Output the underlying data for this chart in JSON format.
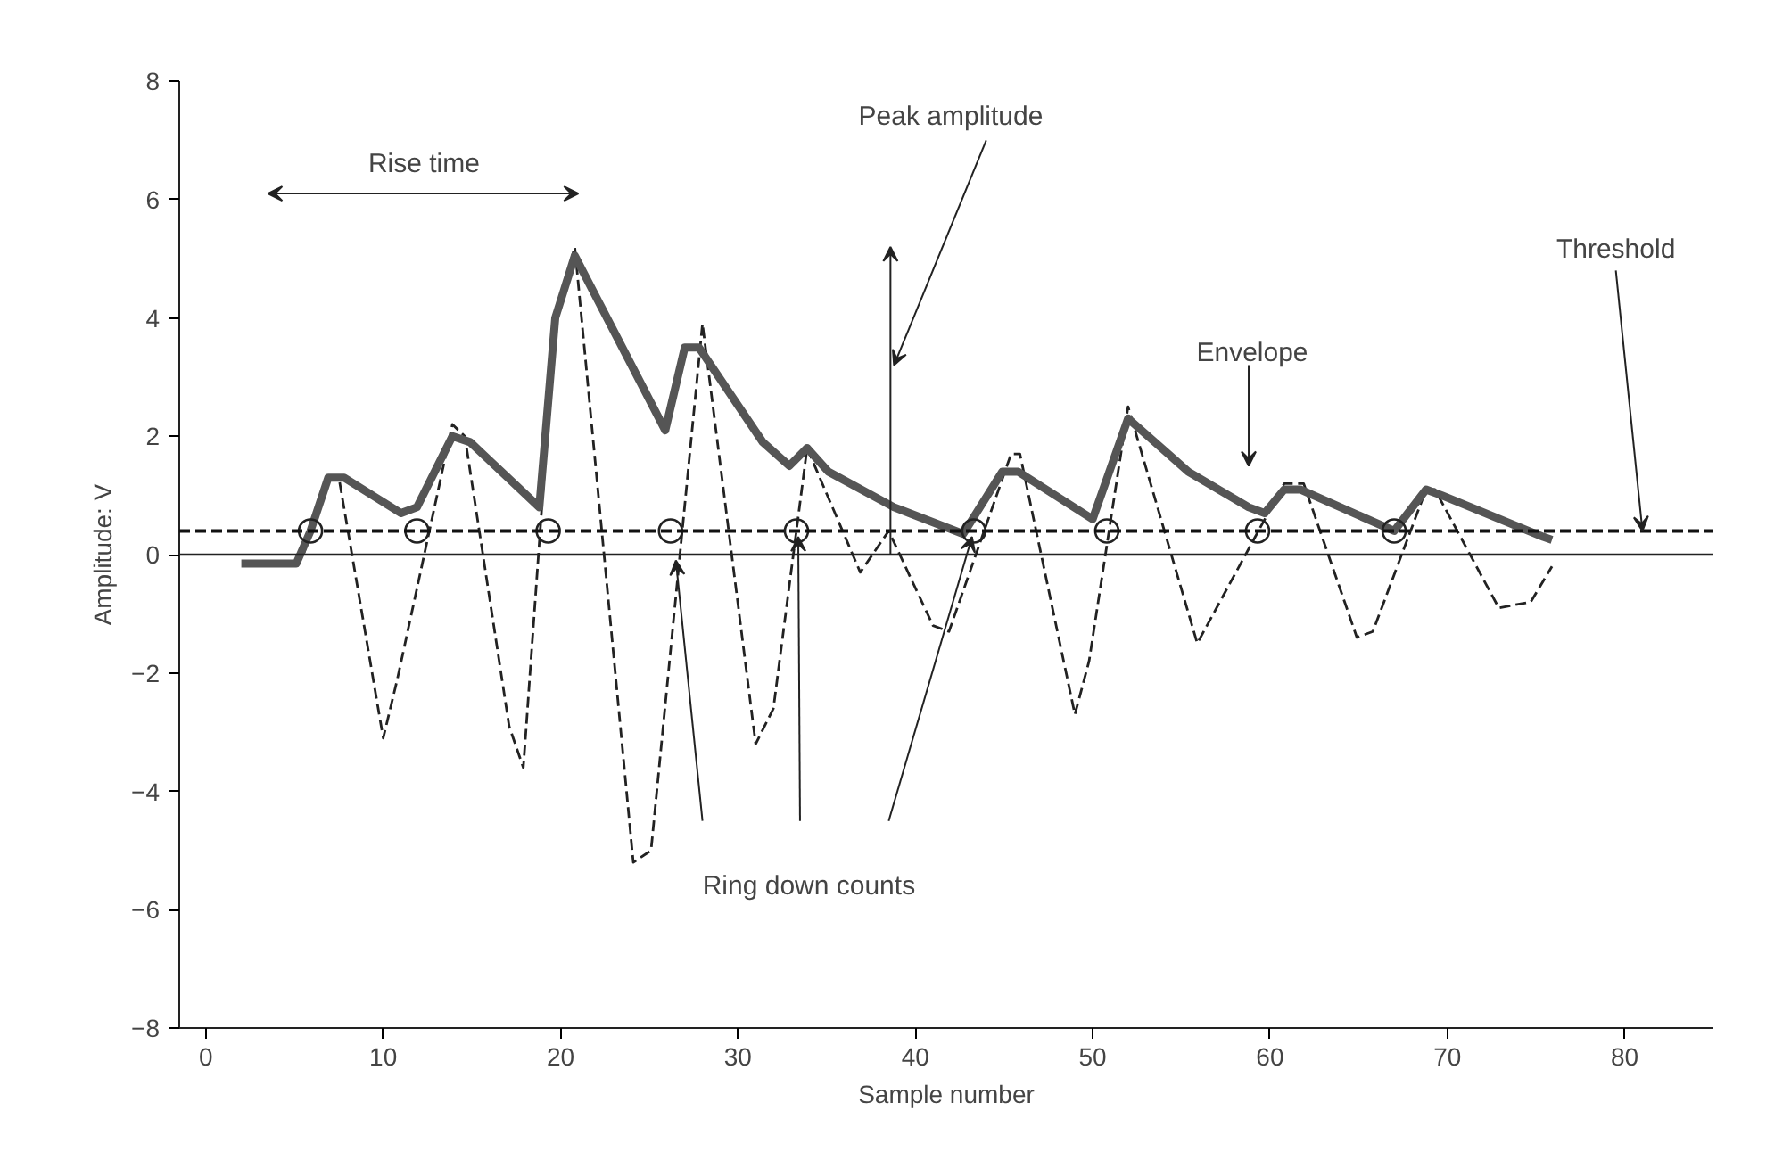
{
  "chart_data": {
    "type": "line",
    "xlabel": "Sample number",
    "ylabel": "Amplitude: V",
    "xlim": [
      -1.5,
      85
    ],
    "ylim": [
      -8,
      8
    ],
    "xticks": [
      0,
      10,
      20,
      30,
      40,
      50,
      60,
      70,
      80
    ],
    "yticks": [
      -8,
      -6,
      -4,
      -2,
      0,
      2,
      4,
      6,
      8
    ],
    "grid": false,
    "series": [
      {
        "line_style": "dashed",
        "color": "#222222",
        "x": [
          5.5,
          6.9,
          7.5,
          10,
          10.8,
          13.9,
          14.6,
          17.1,
          17.9,
          19.7,
          20.8,
          24.1,
          25.1,
          28,
          31,
          32,
          33.9,
          36.9,
          38.5,
          41,
          41.9,
          45.4,
          45.9,
          49,
          49.8,
          52,
          55.9,
          60.8,
          61.9,
          64.9,
          65.8,
          68.8,
          69.3,
          72.9,
          74.7,
          75.9
        ],
        "values": [
          0,
          1.3,
          1.3,
          -3.1,
          -2.1,
          2.2,
          2.0,
          -2.9,
          -3.6,
          4.0,
          5.2,
          -5.2,
          -5.0,
          3.9,
          -3.2,
          -2.6,
          1.8,
          -0.3,
          0.4,
          -1.2,
          -1.3,
          1.7,
          1.7,
          -2.7,
          -1.8,
          2.5,
          -1.5,
          1.2,
          1.2,
          -1.4,
          -1.3,
          1.1,
          1.1,
          -0.9,
          -0.8,
          -0.2
        ]
      },
      {
        "line_style": "solid",
        "color": "#555555",
        "x": [
          2.0,
          5.1,
          5.9,
          6.9,
          7.8,
          11.0,
          11.9,
          13.9,
          14.9,
          18.8,
          19.7,
          20.8,
          25.9,
          27.0,
          27.8,
          31.4,
          32.9,
          33.9,
          35.1,
          38.8,
          42.7,
          44.9,
          45.8,
          50.0,
          52.0,
          55.4,
          58.8,
          59.7,
          60.8,
          61.7,
          67.0,
          68.8,
          69.7,
          75.4,
          75.9
        ],
        "values": [
          -0.15,
          -0.15,
          0.4,
          1.3,
          1.3,
          0.7,
          0.8,
          2.0,
          1.9,
          0.8,
          4.0,
          5.05,
          2.1,
          3.5,
          3.5,
          1.9,
          1.5,
          1.8,
          1.4,
          0.8,
          0.35,
          1.4,
          1.4,
          0.6,
          2.3,
          1.4,
          0.8,
          0.7,
          1.1,
          1.1,
          0.4,
          1.1,
          1.0,
          0.3,
          0.25
        ]
      },
      {
        "type": "scatter",
        "marker": "circle",
        "color": "#222222",
        "x": [
          5.9,
          11.9,
          19.3,
          26.2,
          33.3,
          43.3,
          50.8,
          59.3,
          67.0
        ],
        "values": [
          0.4,
          0.4,
          0.4,
          0.4,
          0.4,
          0.4,
          0.4,
          0.4,
          0.4
        ]
      }
    ],
    "ref_lines": [
      {
        "axis": "y",
        "value": 0,
        "line_style": "solid",
        "color": "#222222"
      },
      {
        "axis": "y",
        "value": 0.4,
        "line_style": "dashed",
        "color": "#111111",
        "label": "Threshold"
      }
    ],
    "annotations": [
      "Rise time",
      "Peak amplitude",
      "Envelope",
      "Ring down counts"
    ]
  }
}
